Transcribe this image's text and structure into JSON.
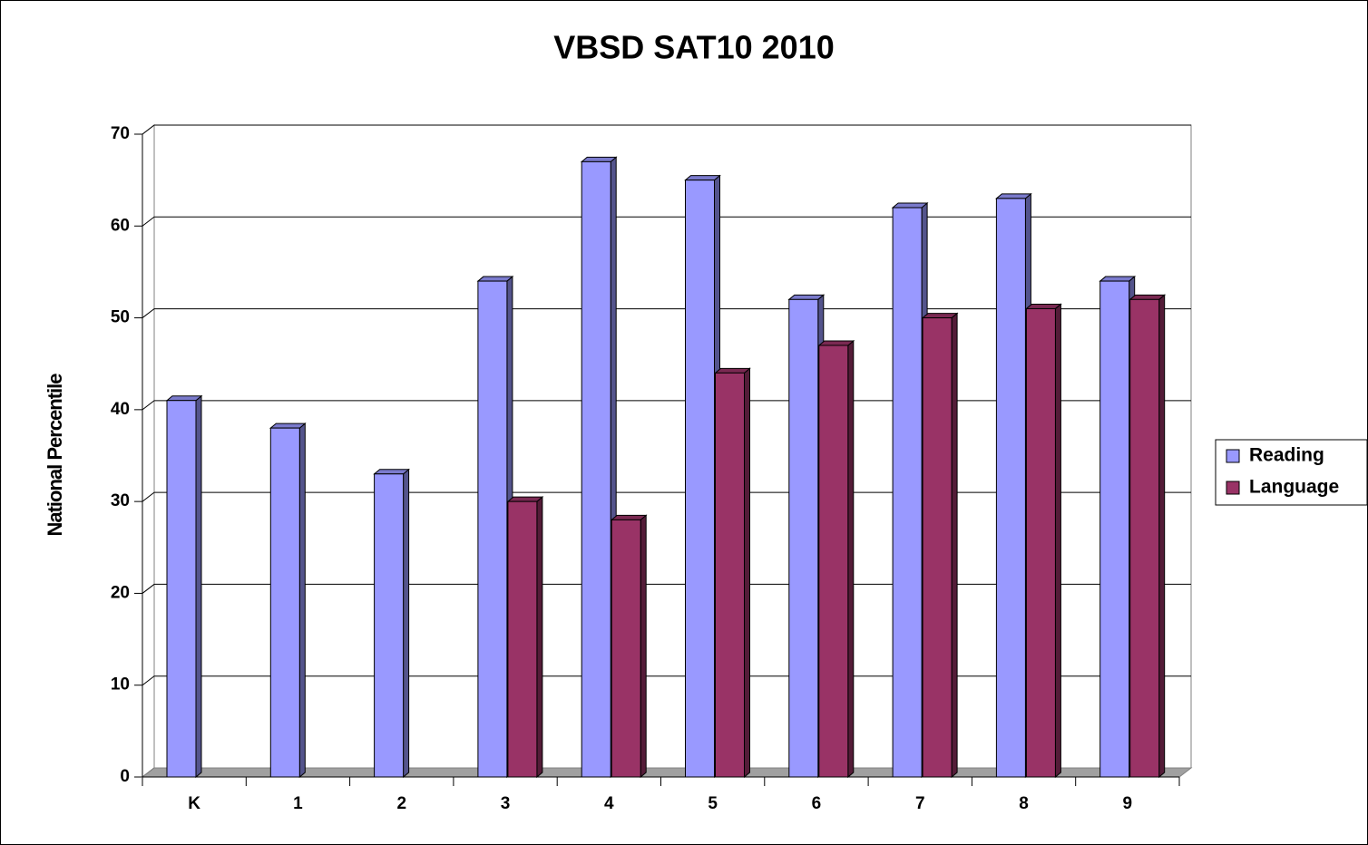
{
  "chart_data": {
    "type": "bar",
    "title": "VBSD SAT10 2010",
    "y_label": "National Percentile",
    "categories": [
      "K",
      "1",
      "2",
      "3",
      "4",
      "5",
      "6",
      "7",
      "8",
      "9"
    ],
    "series": [
      {
        "name": "Reading",
        "color": "#9999ff",
        "values": [
          41,
          38,
          33,
          54,
          67,
          65,
          52,
          62,
          63,
          54
        ]
      },
      {
        "name": "Language",
        "color": "#993366",
        "values": [
          null,
          null,
          null,
          30,
          28,
          44,
          47,
          50,
          51,
          52
        ]
      }
    ],
    "ylim": [
      0,
      70
    ],
    "yticks": [
      0,
      10,
      20,
      30,
      40,
      50,
      60,
      70
    ],
    "grid": true,
    "legend": "right"
  }
}
